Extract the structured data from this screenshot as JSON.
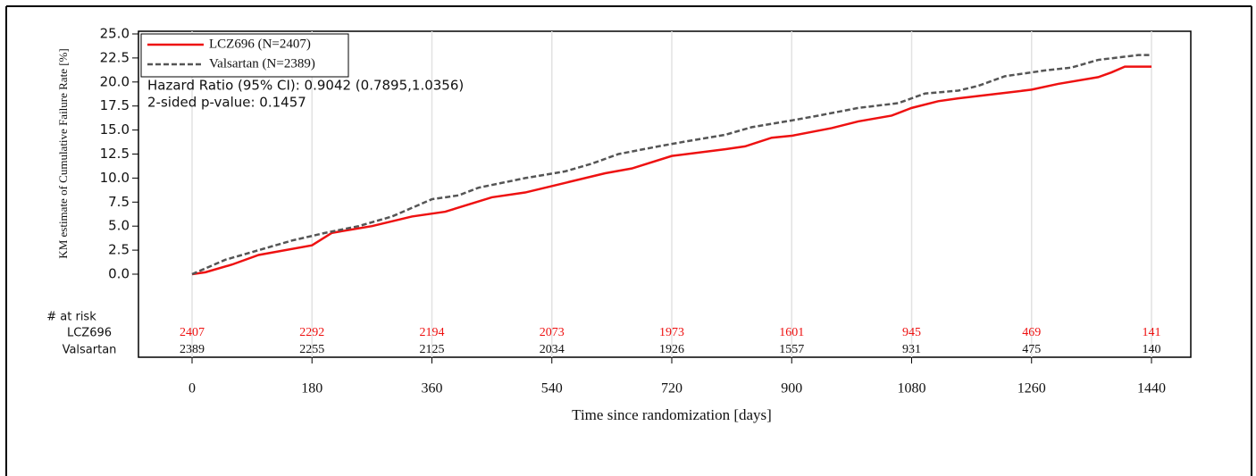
{
  "chart_data": {
    "type": "line",
    "y_label": "KM estimate of Cumulative Failure Rate [%]",
    "x_label": "Time since randomization [days]",
    "xlim": [
      0,
      1440
    ],
    "ylim": [
      0,
      25
    ],
    "xticks": [
      0,
      180,
      360,
      540,
      720,
      900,
      1080,
      1260,
      1440
    ],
    "yticks": [
      {
        "value": 0,
        "label": "0.0"
      },
      {
        "value": 2.5,
        "label": "2.5"
      },
      {
        "value": 5,
        "label": "5.0"
      },
      {
        "value": 7.5,
        "label": "7.5"
      },
      {
        "value": 10,
        "label": "10.0"
      },
      {
        "value": 12.5,
        "label": "12.5"
      },
      {
        "value": 15,
        "label": "15.0"
      },
      {
        "value": 17.5,
        "label": "17.5"
      },
      {
        "value": 20,
        "label": "20.0"
      },
      {
        "value": 22.5,
        "label": "22.5"
      },
      {
        "value": 25,
        "label": "25.0"
      }
    ],
    "grid_x": true,
    "legend": "upper left",
    "annotations": [
      "Hazard Ratio (95% CI): 0.9042 (0.7895,1.0356)",
      "2-sided p-value: 0.1457"
    ],
    "series": [
      {
        "name": "LCZ696 (N=2407)",
        "color": "#ee1111",
        "style": "solid",
        "x": [
          0,
          20,
          60,
          100,
          180,
          210,
          270,
          330,
          380,
          450,
          500,
          560,
          620,
          660,
          720,
          800,
          830,
          870,
          900,
          960,
          1000,
          1050,
          1080,
          1120,
          1150,
          1200,
          1260,
          1300,
          1360,
          1380,
          1400,
          1440
        ],
        "values": [
          0,
          0.2,
          1,
          2,
          3,
          4.3,
          5,
          6,
          6.5,
          8,
          8.5,
          9.5,
          10.5,
          11,
          12.3,
          13,
          13.3,
          14.2,
          14.4,
          15.2,
          15.9,
          16.5,
          17.3,
          18,
          18.3,
          18.7,
          19.2,
          19.8,
          20.5,
          21,
          21.6,
          21.6
        ]
      },
      {
        "name": "Valsartan (N=2389)",
        "color": "#555555",
        "style": "dashed",
        "x": [
          0,
          50,
          100,
          150,
          200,
          250,
          300,
          360,
          400,
          430,
          500,
          560,
          600,
          640,
          700,
          740,
          800,
          840,
          900,
          940,
          1000,
          1060,
          1100,
          1150,
          1180,
          1220,
          1280,
          1320,
          1360,
          1420,
          1440
        ],
        "values": [
          0,
          1.5,
          2.5,
          3.5,
          4.3,
          5,
          6,
          7.8,
          8.2,
          9,
          10,
          10.7,
          11.5,
          12.5,
          13.3,
          13.8,
          14.5,
          15.3,
          16,
          16.5,
          17.3,
          17.8,
          18.8,
          19.1,
          19.6,
          20.6,
          21.2,
          21.5,
          22.3,
          22.8,
          22.8
        ]
      }
    ],
    "at_risk": {
      "title": "# at risk",
      "rows": [
        {
          "name": "LCZ696",
          "color": "#ee1111",
          "values": [
            2407,
            2292,
            2194,
            2073,
            1973,
            1601,
            945,
            469,
            141
          ]
        },
        {
          "name": "Valsartan",
          "color": "#111111",
          "values": [
            2389,
            2255,
            2125,
            2034,
            1926,
            1557,
            931,
            475,
            140
          ]
        }
      ]
    }
  }
}
